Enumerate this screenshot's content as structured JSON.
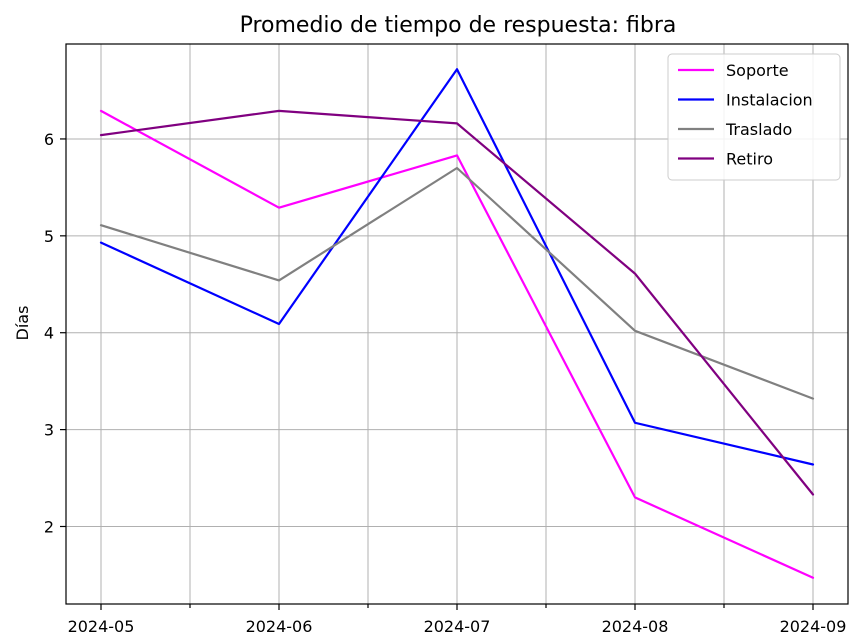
{
  "chart_data": {
    "type": "line",
    "title": "Promedio de tiempo de respuesta: fibra",
    "xlabel": "",
    "ylabel": "Días",
    "x": [
      "2024-05",
      "2024-06",
      "2024-07",
      "2024-08",
      "2024-09"
    ],
    "x_ticks": [
      "2024-05",
      "2024-06",
      "2024-07",
      "2024-08",
      "2024-09"
    ],
    "y_ticks": [
      2,
      3,
      4,
      5,
      6
    ],
    "ylim": [
      1.2,
      6.98
    ],
    "grid": true,
    "legend": "top-right",
    "series": [
      {
        "name": "Soporte",
        "color": "#ff00ff",
        "values": [
          6.29,
          5.29,
          5.83,
          2.3,
          1.47
        ]
      },
      {
        "name": "Instalacion",
        "color": "#0000ff",
        "values": [
          4.93,
          4.09,
          6.72,
          3.07,
          2.64
        ]
      },
      {
        "name": "Traslado",
        "color": "#808080",
        "values": [
          5.11,
          4.54,
          5.7,
          4.02,
          3.32
        ]
      },
      {
        "name": "Retiro",
        "color": "#800080",
        "values": [
          6.04,
          6.29,
          6.16,
          4.61,
          2.33
        ]
      }
    ]
  }
}
